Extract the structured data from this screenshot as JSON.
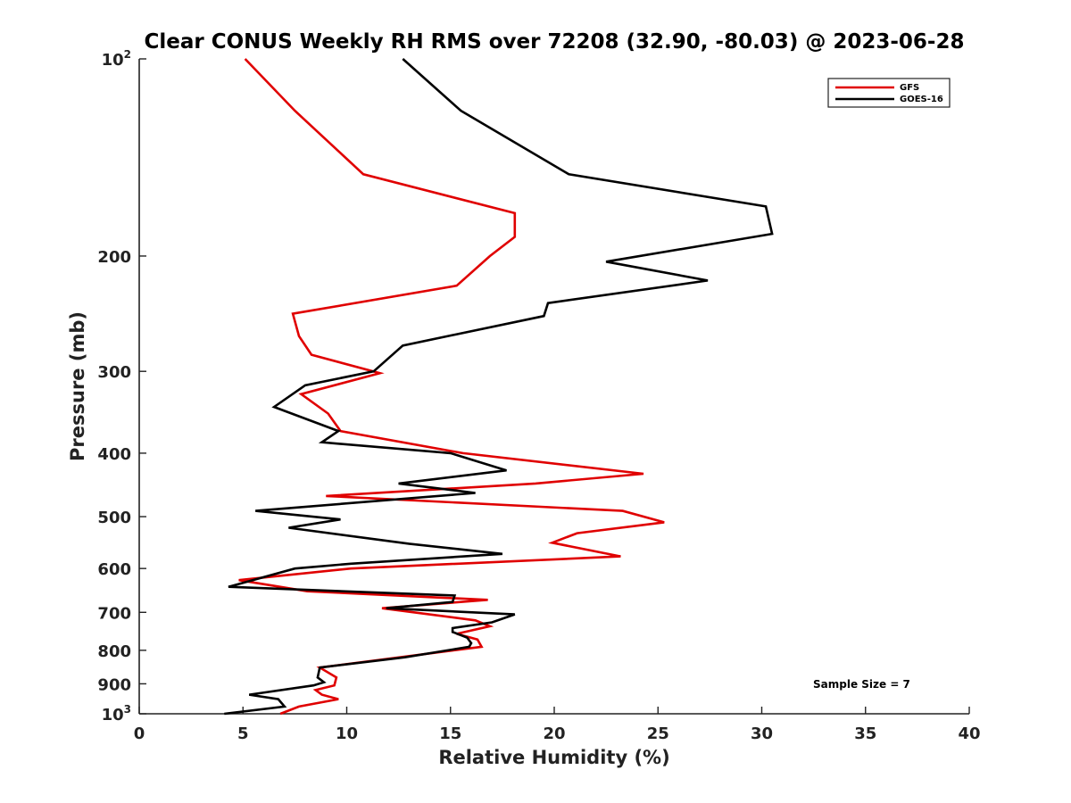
{
  "chart_data": {
    "type": "line",
    "title": "Clear CONUS Weekly RH RMS over 72208 (32.90, -80.03) @ 2023-06-28",
    "xlabel": "Relative Humidity (%)",
    "ylabel": "Pressure (mb)",
    "xlim": [
      0,
      40
    ],
    "ylim": [
      100,
      1000
    ],
    "yscale": "log",
    "y_reversed": true,
    "grid": false,
    "legend_position": "top-right",
    "x_ticks": [
      0,
      5,
      10,
      15,
      20,
      25,
      30,
      35,
      40
    ],
    "x_tick_labels": [
      "0",
      "5",
      "10",
      "15",
      "20",
      "25",
      "30",
      "35",
      "40"
    ],
    "y_ticks": [
      100,
      200,
      300,
      400,
      500,
      600,
      700,
      800,
      900,
      1000
    ],
    "y_tick_labels": [
      {
        "base": "10",
        "sup": "2"
      },
      {
        "base": "200",
        "sup": ""
      },
      {
        "base": "300",
        "sup": ""
      },
      {
        "base": "400",
        "sup": ""
      },
      {
        "base": "500",
        "sup": ""
      },
      {
        "base": "600",
        "sup": ""
      },
      {
        "base": "700",
        "sup": ""
      },
      {
        "base": "800",
        "sup": ""
      },
      {
        "base": "900",
        "sup": ""
      },
      {
        "base": "10",
        "sup": "3"
      }
    ],
    "annotation": "Sample Size = 7",
    "series": [
      {
        "name": "GFS",
        "color": "#e00000",
        "points": [
          [
            5.1,
            100
          ],
          [
            7.5,
            120
          ],
          [
            10.8,
            150
          ],
          [
            18.1,
            172
          ],
          [
            18.1,
            187
          ],
          [
            16.9,
            200
          ],
          [
            15.3,
            222
          ],
          [
            7.4,
            245
          ],
          [
            7.7,
            265
          ],
          [
            8.3,
            283
          ],
          [
            11.6,
            302
          ],
          [
            7.8,
            325
          ],
          [
            9.1,
            348
          ],
          [
            9.7,
            370
          ],
          [
            15.6,
            400
          ],
          [
            24.3,
            430
          ],
          [
            19.1,
            445
          ],
          [
            9.0,
            465
          ],
          [
            23.3,
            490
          ],
          [
            25.3,
            510
          ],
          [
            21.1,
            530
          ],
          [
            19.9,
            548
          ],
          [
            23.2,
            575
          ],
          [
            10.2,
            600
          ],
          [
            4.8,
            625
          ],
          [
            8.1,
            650
          ],
          [
            16.8,
            670
          ],
          [
            11.7,
            690
          ],
          [
            16.2,
            720
          ],
          [
            16.9,
            735
          ],
          [
            15.3,
            755
          ],
          [
            16.3,
            770
          ],
          [
            16.5,
            790
          ],
          [
            8.7,
            850
          ],
          [
            9.5,
            880
          ],
          [
            9.4,
            905
          ],
          [
            8.5,
            920
          ],
          [
            8.8,
            935
          ],
          [
            9.6,
            950
          ],
          [
            7.7,
            975
          ],
          [
            6.8,
            1000
          ]
        ]
      },
      {
        "name": "GOES-16",
        "color": "#000000",
        "points": [
          [
            12.7,
            100
          ],
          [
            15.5,
            120
          ],
          [
            20.7,
            150
          ],
          [
            30.2,
            168
          ],
          [
            30.5,
            185
          ],
          [
            22.5,
            204
          ],
          [
            27.4,
            218
          ],
          [
            19.7,
            236
          ],
          [
            19.5,
            247
          ],
          [
            12.7,
            274
          ],
          [
            11.3,
            300
          ],
          [
            8.0,
            315
          ],
          [
            6.5,
            340
          ],
          [
            9.6,
            370
          ],
          [
            8.8,
            385
          ],
          [
            15.0,
            400
          ],
          [
            17.7,
            425
          ],
          [
            12.5,
            445
          ],
          [
            16.2,
            460
          ],
          [
            5.6,
            490
          ],
          [
            9.7,
            505
          ],
          [
            7.2,
            520
          ],
          [
            13.0,
            550
          ],
          [
            17.5,
            570
          ],
          [
            10.2,
            590
          ],
          [
            7.5,
            600
          ],
          [
            4.3,
            640
          ],
          [
            15.2,
            660
          ],
          [
            15.1,
            675
          ],
          [
            11.9,
            690
          ],
          [
            18.1,
            705
          ],
          [
            17.0,
            725
          ],
          [
            15.1,
            740
          ],
          [
            15.1,
            750
          ],
          [
            15.8,
            765
          ],
          [
            16.0,
            780
          ],
          [
            15.9,
            790
          ],
          [
            12.8,
            820
          ],
          [
            8.7,
            850
          ],
          [
            8.6,
            880
          ],
          [
            8.9,
            895
          ],
          [
            8.4,
            905
          ],
          [
            5.3,
            935
          ],
          [
            6.7,
            950
          ],
          [
            7.0,
            975
          ],
          [
            4.1,
            1000
          ]
        ]
      }
    ]
  }
}
